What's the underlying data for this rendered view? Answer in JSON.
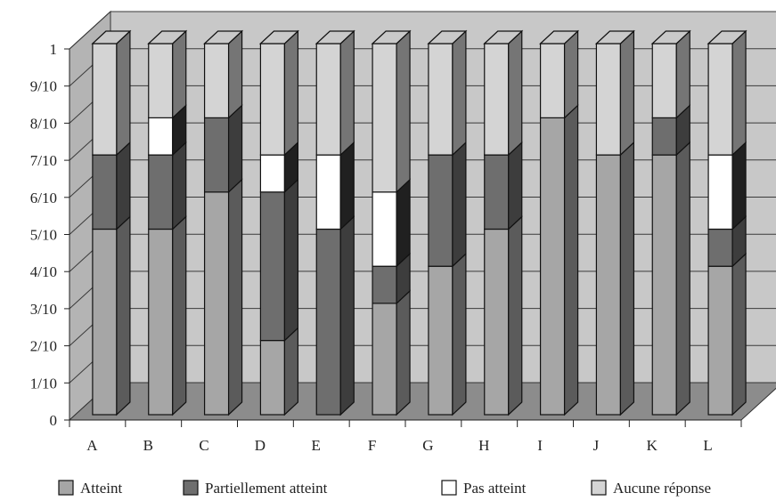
{
  "chart_data": {
    "type": "bar",
    "stacked": true,
    "three_d": true,
    "categories": [
      "A",
      "B",
      "C",
      "D",
      "E",
      "F",
      "G",
      "H",
      "I",
      "J",
      "K",
      "L"
    ],
    "y_ticks": [
      "0",
      "1/10",
      "2/10",
      "3/10",
      "4/10",
      "5/10",
      "6/10",
      "7/10",
      "8/10",
      "9/10",
      "1"
    ],
    "ylim": [
      0,
      1
    ],
    "grid": true,
    "legend_position": "bottom",
    "series": [
      {
        "name": "Atteint",
        "color": "#a6a6a6",
        "values": [
          0.5,
          0.5,
          0.6,
          0.2,
          0.0,
          0.3,
          0.4,
          0.5,
          0.8,
          0.7,
          0.7,
          0.4
        ]
      },
      {
        "name": "Partiellement atteint",
        "color": "#6e6e6e",
        "values": [
          0.2,
          0.2,
          0.2,
          0.4,
          0.5,
          0.1,
          0.3,
          0.2,
          0.0,
          0.0,
          0.1,
          0.1
        ]
      },
      {
        "name": "Pas atteint",
        "color": "#ffffff",
        "values": [
          0.0,
          0.1,
          0.0,
          0.1,
          0.2,
          0.2,
          0.0,
          0.0,
          0.0,
          0.0,
          0.0,
          0.2
        ]
      },
      {
        "name": "Aucune réponse",
        "color": "#d4d4d4",
        "values": [
          0.3,
          0.2,
          0.2,
          0.3,
          0.3,
          0.4,
          0.3,
          0.3,
          0.2,
          0.3,
          0.2,
          0.3
        ]
      }
    ],
    "colors": {
      "wall": "#c8c8c8",
      "floor": "#8c8c8c",
      "side_wall": "#b4b4b4",
      "grid": "#3a3a3a"
    }
  }
}
